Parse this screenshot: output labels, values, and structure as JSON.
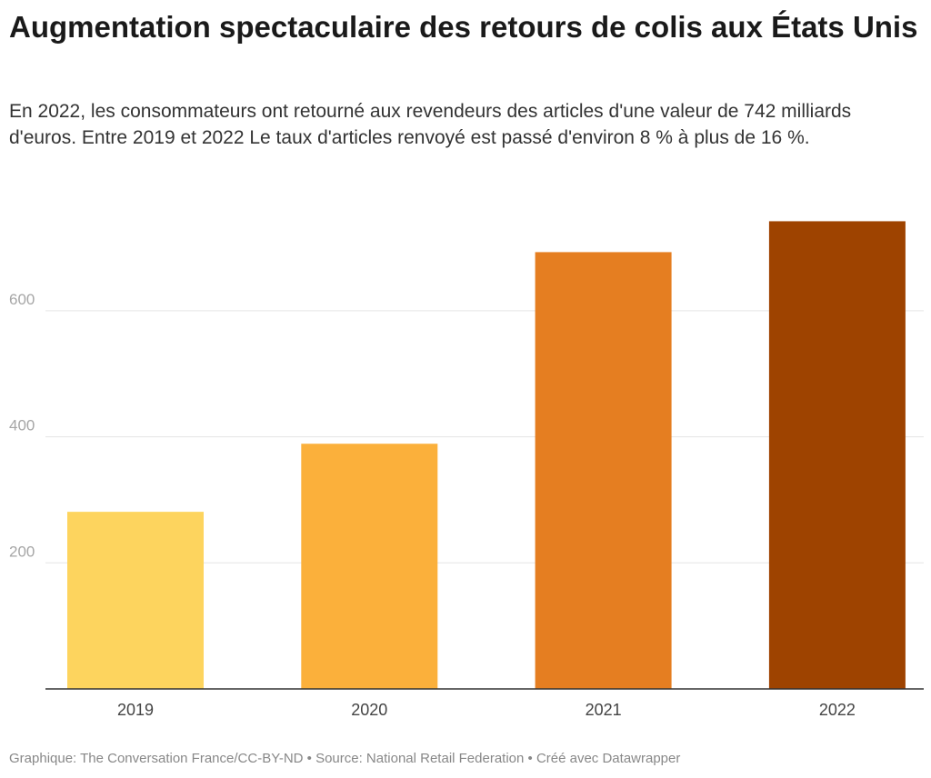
{
  "header": {
    "title": "Augmentation spectaculaire des retours de colis aux États Unis",
    "subtitle": "En 2022, les consommateurs ont retourné aux revendeurs des articles d'une valeur de 742 milliards d'euros. Entre 2019 et 2022 Le taux d'articles renvoyé est passé d'environ 8 % à plus de 16 %."
  },
  "footer": {
    "credit": "Graphique: The Conversation France/CC-BY-ND • Source: National Retail Federation • Créé avec Datawrapper"
  },
  "colors": {
    "bars": [
      "#fdd45e",
      "#fbb03b",
      "#e57e21",
      "#9e4300"
    ],
    "gridline": "#e5e5e5",
    "baseline": "#333333"
  },
  "chart_data": {
    "type": "bar",
    "categories": [
      "2019",
      "2020",
      "2021",
      "2022"
    ],
    "values": [
      281,
      389,
      693,
      742
    ],
    "title": "Augmentation spectaculaire des retours de colis aux États Unis",
    "xlabel": "",
    "ylabel": "",
    "ylim": [
      0,
      770
    ],
    "yticks": [
      200,
      400,
      600
    ],
    "grid": true,
    "legend": "none"
  }
}
